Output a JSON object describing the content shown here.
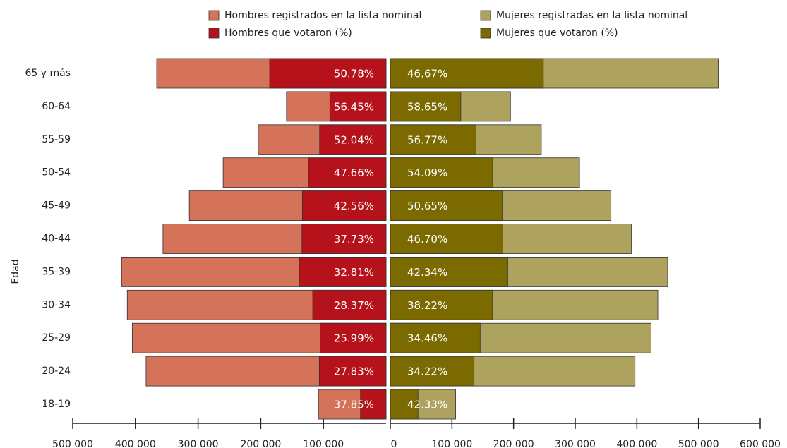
{
  "chart_data": {
    "type": "pyramid",
    "y_label": "Edad",
    "categories": [
      "65 y más",
      "60-64",
      "55-59",
      "50-54",
      "45-49",
      "40-44",
      "35-39",
      "30-34",
      "25-29",
      "20-24",
      "18-19"
    ],
    "series": [
      {
        "name": "Hombres registrados en la lista nominal",
        "color": "#d4735a",
        "side": "left",
        "values": [
          366000,
          159000,
          204000,
          260000,
          314000,
          356000,
          422000,
          413000,
          405000,
          383000,
          108000
        ]
      },
      {
        "name": "Hombres que votaron (%)",
        "color": "#b5121b",
        "side": "left",
        "values": [
          50.78,
          56.45,
          52.04,
          47.66,
          42.56,
          37.73,
          32.81,
          28.37,
          25.99,
          27.83,
          37.85
        ],
        "value_labels": [
          "50.78%",
          "56.45%",
          "52.04%",
          "47.66%",
          "42.56%",
          "37.73%",
          "32.81%",
          "28.37%",
          "25.99%",
          "27.83%",
          "37.85%"
        ]
      },
      {
        "name": "Mujeres registradas en la lista nominal",
        "color": "#ada25e",
        "side": "right",
        "values": [
          532000,
          195000,
          245000,
          307000,
          358000,
          391000,
          450000,
          434000,
          423000,
          397000,
          106000
        ]
      },
      {
        "name": "Mujeres que votaron (%)",
        "color": "#7a6a00",
        "side": "right",
        "values": [
          46.67,
          58.65,
          56.77,
          54.09,
          50.65,
          46.7,
          42.34,
          38.22,
          34.46,
          34.22,
          42.33
        ],
        "value_labels": [
          "46.67%",
          "58.65%",
          "56.77%",
          "54.09%",
          "50.65%",
          "46.70%",
          "42.34%",
          "38.22%",
          "34.46%",
          "34.22%",
          "42.33%"
        ]
      }
    ],
    "left_axis": {
      "xlim": [
        500000,
        0
      ],
      "xticks": [
        {
          "value": 500000,
          "label": "500 000"
        },
        {
          "value": 400000,
          "label": "400 000"
        },
        {
          "value": 300000,
          "label": "300 000"
        },
        {
          "value": 200000,
          "label": "200 000"
        },
        {
          "value": 100000,
          "label": "100 000"
        }
      ]
    },
    "right_axis": {
      "xlim": [
        0,
        600000
      ],
      "xticks": [
        0,
        {
          "value": 100000,
          "label": "100 000"
        },
        {
          "value": 200000,
          "label": "200 000"
        },
        {
          "value": 300000,
          "label": "300 000"
        },
        {
          "value": 400000,
          "label": "400 000"
        },
        {
          "value": 500000,
          "label": "500 000"
        },
        {
          "value": 600000,
          "label": "600 000"
        }
      ]
    }
  }
}
